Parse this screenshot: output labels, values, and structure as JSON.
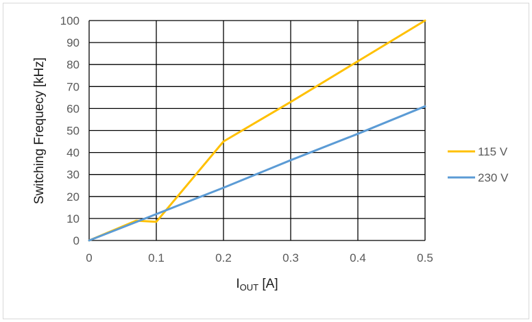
{
  "chart_data": {
    "type": "line",
    "xlabel": "I",
    "xlabel_sub": "OUT",
    "xlabel_unit": " [A]",
    "ylabel": "Switching Frequecy  [kHz]",
    "xlim": [
      0,
      0.5
    ],
    "ylim": [
      0,
      100
    ],
    "x_ticks": [
      "0",
      "0.1",
      "0.2",
      "0.3",
      "0.4",
      "0.5"
    ],
    "y_ticks": [
      "0",
      "10",
      "20",
      "30",
      "40",
      "50",
      "60",
      "70",
      "80",
      "90",
      "100"
    ],
    "x_tick_values": [
      0,
      0.1,
      0.2,
      0.3,
      0.4,
      0.5
    ],
    "y_tick_values": [
      0,
      10,
      20,
      30,
      40,
      50,
      60,
      70,
      80,
      90,
      100
    ],
    "grid": true,
    "legend_position": "right",
    "series": [
      {
        "name": "115 V",
        "color": "#FFC000",
        "x": [
          0,
          0.07,
          0.1,
          0.2,
          0.3,
          0.4,
          0.5
        ],
        "y": [
          0,
          9,
          8.5,
          45,
          63,
          81.5,
          100
        ]
      },
      {
        "name": "230 V",
        "color": "#5B9BD5",
        "x": [
          0,
          0.1,
          0.2,
          0.3,
          0.4,
          0.5
        ],
        "y": [
          0,
          12,
          24,
          36.5,
          48.5,
          61
        ]
      }
    ]
  }
}
